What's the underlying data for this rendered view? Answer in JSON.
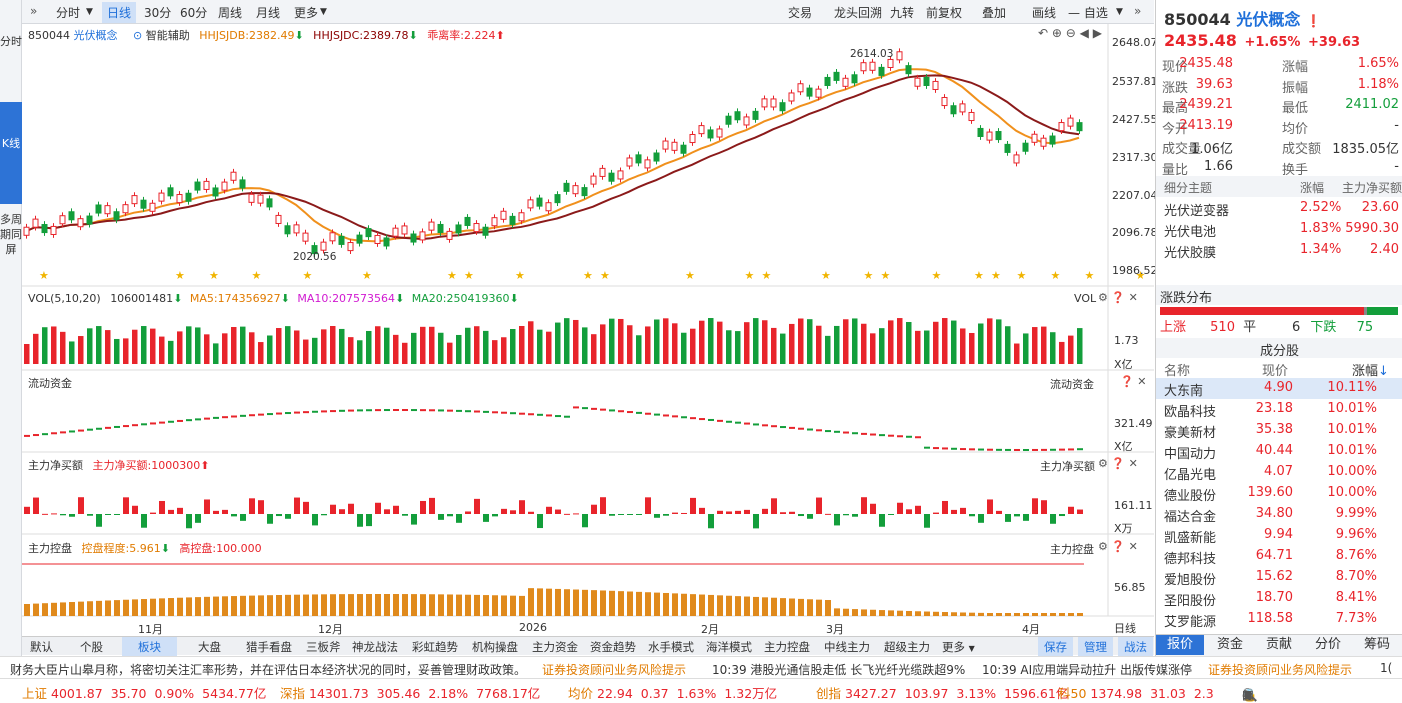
{
  "toolbar": {
    "periods": [
      "分时",
      "日线",
      "30分",
      "60分",
      "周线",
      "月线",
      "更多"
    ],
    "active_period": "日线",
    "right_tools": [
      "交易",
      "龙头回溯",
      "九转",
      "前复权",
      "叠加",
      "画线",
      "自选"
    ]
  },
  "leftbar": {
    "fenshi": "分时",
    "kline": "K线",
    "multi": "多周期同屏"
  },
  "main_legend": {
    "code": "850044",
    "name": "光伏概念",
    "assist": "智能辅助",
    "hhjsjdb": "HHJSJDB:2382.49",
    "hhjsjdc": "HHJSJDC:2389.78",
    "divergence": "乖离率:2.224"
  },
  "price_axis": [
    "2648.07",
    "2537.81",
    "2427.55",
    "2317.30",
    "2207.04",
    "2096.78",
    "1986.52"
  ],
  "price_annotations": {
    "high": "2614.03",
    "low": "2020.56"
  },
  "vol_legend": {
    "label": "VOL(5,10,20)",
    "value": "106001481",
    "ma5": "MA5:174356927",
    "ma10": "MA10:207573564",
    "ma20": "MA20:250419360",
    "right": "VOL",
    "axis": "1.73",
    "unit": "X亿"
  },
  "flow": {
    "label": "流动资金",
    "right": "流动资金",
    "axis": "321.49",
    "unit": "X亿"
  },
  "netbuy": {
    "label": "主力净买额",
    "value": "主力净买额:1000300",
    "right": "主力净买额",
    "axis": "161.11",
    "unit": "X万"
  },
  "control": {
    "label": "主力控盘",
    "degree": "控盘程度:5.961",
    "high": "高控盘:100.000",
    "right": "主力控盘",
    "axis": "56.85",
    "unit": "日线"
  },
  "date_axis": [
    "11月",
    "12月",
    "2026",
    "2月",
    "3月",
    "4月"
  ],
  "bottom_tabs": [
    "默认",
    "个股",
    "板块",
    "大盘",
    "猎手看盘",
    "三板斧",
    "神龙战法",
    "彩虹趋势",
    "机构操盘",
    "主力资金",
    "资金趋势",
    "水手模式",
    "海洋模式",
    "主力控盘",
    "中线主力",
    "超级主力",
    "更多"
  ],
  "bottom_right": [
    "保存",
    "管理",
    "战法"
  ],
  "ticker": [
    "财务大臣片山皋月称，将密切关注汇率形势，并在评估日本经济状况的同时，妥善管理财政政策。",
    "证券投资顾问业务风险提示",
    "10:39 港股光通信股走低 长飞光纤光缆跌超9%",
    "10:39 AI应用端异动拉升 出版传媒涨停",
    "证券投资顾问业务风险提示",
    "1("
  ],
  "indices": [
    {
      "name": "上证",
      "price": "4001.87",
      "chg": "35.70",
      "pct": "0.90%",
      "amt": "5434.77亿"
    },
    {
      "name": "深指",
      "price": "14301.73",
      "chg": "305.46",
      "pct": "2.18%",
      "amt": "7768.17亿"
    },
    {
      "name": "均价",
      "price": "22.94",
      "chg": "0.37",
      "pct": "1.63%",
      "amt": "1.32万亿"
    },
    {
      "name": "创指",
      "price": "3427.27",
      "chg": "103.97",
      "pct": "3.13%",
      "amt": "1596.61亿"
    },
    {
      "name": "科50",
      "price": "1374.98",
      "chg": "31.03",
      "pct": "2.3"
    }
  ],
  "quote": {
    "code": "850044",
    "name": "光伏概念",
    "price": "2435.48",
    "pct": "+1.65%",
    "chg": "+39.63",
    "rows": [
      [
        "现价",
        "2435.48",
        "涨幅",
        "1.65%"
      ],
      [
        "涨跌",
        "39.63",
        "振幅",
        "1.18%"
      ],
      [
        "最高",
        "2439.21",
        "最低",
        "2411.02"
      ],
      [
        "今开",
        "2413.19",
        "均价",
        "-"
      ],
      [
        "成交量",
        "1.06亿",
        "成交额",
        "1835.05亿"
      ],
      [
        "量比",
        "1.66",
        "换手",
        "-"
      ]
    ]
  },
  "sub_themes": {
    "headers": [
      "细分主题",
      "涨幅",
      "主力净买额"
    ],
    "rows": [
      [
        "光伏逆变器",
        "2.52%",
        "23.60"
      ],
      [
        "光伏电池",
        "1.83%",
        "5990.30"
      ],
      [
        "光伏胶膜",
        "1.34%",
        "2.40"
      ]
    ]
  },
  "distribution": {
    "title": "涨跌分布",
    "up_label": "上涨",
    "up": "510",
    "flat_label": "平",
    "flat": "6",
    "down_label": "下跌",
    "down": "75"
  },
  "constituents": {
    "title": "成分股",
    "headers": [
      "名称",
      "现价",
      "涨幅"
    ],
    "rows": [
      [
        "大东南",
        "4.90",
        "10.11%"
      ],
      [
        "欧晶科技",
        "23.18",
        "10.01%"
      ],
      [
        "豪美新材",
        "35.38",
        "10.01%"
      ],
      [
        "中国动力",
        "40.44",
        "10.01%"
      ],
      [
        "亿晶光电",
        "4.07",
        "10.00%"
      ],
      [
        "德业股份",
        "139.60",
        "10.00%"
      ],
      [
        "福达合金",
        "34.80",
        "9.99%"
      ],
      [
        "凯盛新能",
        "9.94",
        "9.96%"
      ],
      [
        "德邦科技",
        "64.71",
        "8.76%"
      ],
      [
        "爱旭股份",
        "15.62",
        "8.70%"
      ],
      [
        "圣阳股份",
        "18.70",
        "8.41%"
      ],
      [
        "艾罗能源",
        "118.58",
        "7.73%"
      ]
    ]
  },
  "right_tabs": [
    "报价",
    "资金",
    "贡献",
    "分价",
    "筹码"
  ],
  "colors": {
    "up": "#e8242b",
    "down": "#139e3b",
    "blue": "#1e6fd9",
    "orange": "#e07b00"
  }
}
